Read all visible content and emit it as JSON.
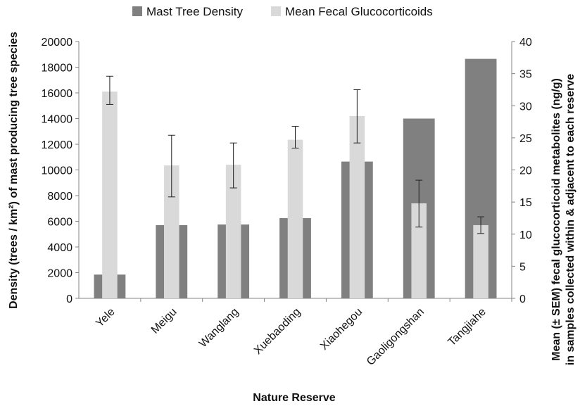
{
  "chart_data": {
    "type": "bar",
    "categories": [
      "Yele",
      "Meigu",
      "Wanglang",
      "Xuebaoding",
      "Xiaohegou",
      "Gaoligongshan",
      "Tangjiahe"
    ],
    "series": [
      {
        "name": "Mast Tree Density",
        "axis": "left",
        "color": "#808080",
        "values": [
          1850,
          5700,
          5750,
          6250,
          10650,
          14000,
          18650
        ]
      },
      {
        "name": "Mean Fecal Glucocorticoids",
        "axis": "right",
        "color": "#d9d9d9",
        "values": [
          32.2,
          20.7,
          20.8,
          24.7,
          28.4,
          14.8,
          11.4
        ],
        "error_low": [
          30.2,
          15.8,
          17.2,
          23.4,
          24.2,
          11.1,
          10.1
        ],
        "error_high": [
          34.6,
          25.4,
          24.2,
          26.8,
          32.5,
          18.4,
          12.7
        ]
      }
    ],
    "y_left": {
      "label": "Density (trees / km²) of mast producing tree species",
      "ylim": [
        0,
        20000
      ],
      "ticks": [
        "0",
        "2000",
        "4000",
        "6000",
        "8000",
        "10000",
        "12000",
        "14000",
        "16000",
        "18000",
        "20000"
      ]
    },
    "y_right": {
      "label_line1": "Mean (± SEM) fecal glucocorticoid metabolites (ng/g)",
      "label_line2": "in samples collected within & adjacent to each reserve",
      "ylim": [
        0,
        40
      ],
      "ticks": [
        "0",
        "5",
        "10",
        "15",
        "20",
        "25",
        "30",
        "35",
        "40"
      ]
    },
    "xlabel": "Nature Reserve",
    "legend_position": "top",
    "grid": false
  }
}
